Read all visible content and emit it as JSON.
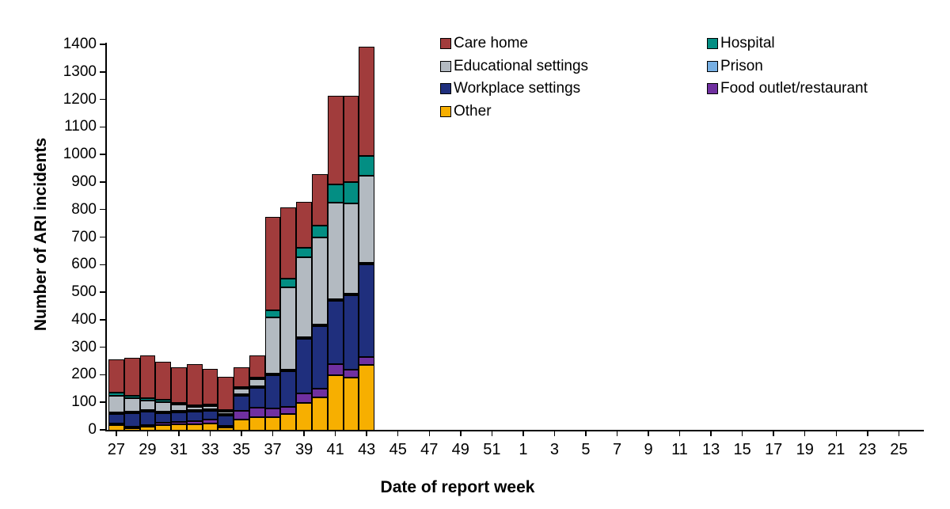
{
  "page": {
    "background": "#FFFFFF",
    "axis_color": "#000000"
  },
  "chart_data": {
    "type": "bar",
    "stacked": true,
    "title": "",
    "xlabel": "Date of report week",
    "ylabel": "Number of ARI incidents",
    "ylim": [
      0,
      1400
    ],
    "grid": false,
    "legend_position": "top-right, two columns",
    "y_tick_labels": [
      "0",
      "100",
      "200",
      "300",
      "400",
      "500",
      "600",
      "700",
      "800",
      "900",
      "1000",
      "1100",
      "1200",
      "1300",
      "1400"
    ],
    "x_tick_labels": [
      "27",
      "29",
      "31",
      "33",
      "35",
      "37",
      "39",
      "41",
      "43",
      "45",
      "47",
      "49",
      "51",
      "1",
      "3",
      "5",
      "7",
      "9",
      "11",
      "13",
      "15",
      "17",
      "19",
      "21",
      "23",
      "25"
    ],
    "x_total_slots": 52,
    "bar_weeks": [
      27,
      28,
      29,
      30,
      31,
      32,
      33,
      34,
      35,
      36,
      37,
      38,
      39,
      40,
      41,
      42,
      43
    ],
    "stack_order_bottom_to_top": [
      "Other",
      "Food outlet/restaurant",
      "Workplace settings",
      "Prison",
      "Educational settings",
      "Hospital",
      "Care home"
    ],
    "legend_columns": [
      [
        "Care home",
        "Educational settings",
        "Workplace settings",
        "Other"
      ],
      [
        "Hospital",
        "Prison",
        "Food outlet/restaurant"
      ]
    ],
    "series": [
      {
        "name": "Care home",
        "color": "#A13C3C",
        "values": [
          120,
          137,
          156,
          139,
          130,
          152,
          129,
          120,
          70,
          80,
          340,
          260,
          167,
          187,
          323,
          313,
          397
        ]
      },
      {
        "name": "Hospital",
        "color": "#038E83",
        "values": [
          11,
          9,
          9,
          7,
          7,
          5,
          4,
          4,
          4,
          6,
          25,
          30,
          33,
          43,
          67,
          77,
          72
        ]
      },
      {
        "name": "Educational settings",
        "color": "#B3BAC1",
        "values": [
          60,
          49,
          35,
          36,
          23,
          10,
          12,
          8,
          22,
          26,
          205,
          300,
          290,
          317,
          350,
          330,
          316
        ]
      },
      {
        "name": "Prison",
        "color": "#77AFE3",
        "values": [
          2,
          2,
          2,
          2,
          2,
          2,
          3,
          2,
          2,
          2,
          3,
          3,
          4,
          4,
          4,
          4,
          4
        ]
      },
      {
        "name": "Workplace settings",
        "color": "#1F2F7D",
        "values": [
          36,
          50,
          49,
          33,
          34,
          36,
          32,
          39,
          54,
          72,
          121,
          130,
          200,
          225,
          230,
          269,
          336
        ]
      },
      {
        "name": "Food outlet/restaurant",
        "color": "#7030A0",
        "values": [
          6,
          4,
          4,
          8,
          8,
          10,
          14,
          4,
          30,
          35,
          29,
          25,
          33,
          33,
          40,
          30,
          29
        ]
      },
      {
        "name": "Other",
        "color": "#F7AF00",
        "values": [
          20,
          11,
          16,
          22,
          24,
          25,
          28,
          15,
          44,
          50,
          50,
          60,
          100,
          119,
          200,
          190,
          238
        ]
      }
    ]
  }
}
